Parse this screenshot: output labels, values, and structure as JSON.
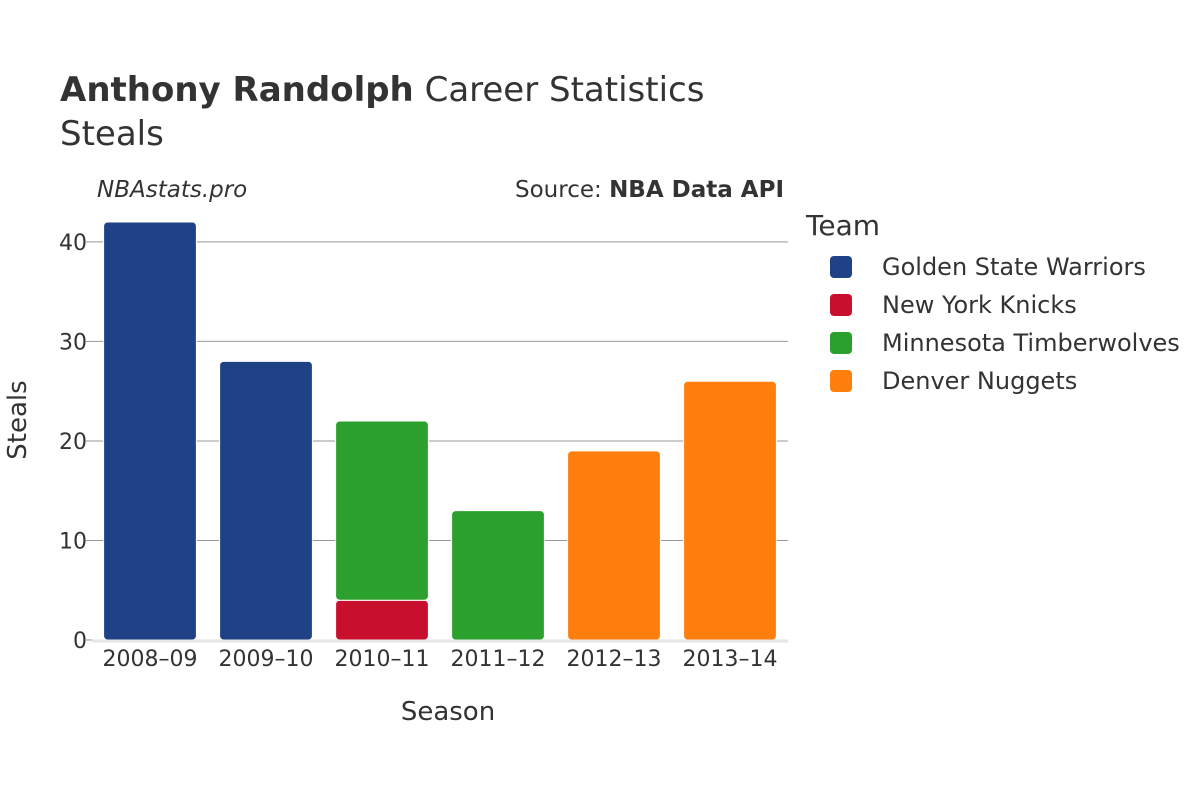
{
  "header": {
    "title_bold": "Anthony Randolph",
    "title_rest": " Career Statistics",
    "subtitle": "Steals",
    "watermark": "NBAstats.pro",
    "source_prefix": "Source: ",
    "source_name": "NBA Data API"
  },
  "legend": {
    "title": "Team",
    "items": [
      {
        "label": "Golden State Warriors",
        "color": "#1f4287"
      },
      {
        "label": "New York Knicks",
        "color": "#c8102e"
      },
      {
        "label": "Minnesota Timberwolves",
        "color": "#2ca02c"
      },
      {
        "label": "Denver Nuggets",
        "color": "#ff7f0e"
      }
    ]
  },
  "chart_data": {
    "type": "bar",
    "stacked": true,
    "title": "Anthony Randolph Career Statistics",
    "subtitle": "Steals",
    "xlabel": "Season",
    "ylabel": "Steals",
    "ylim": [
      0,
      42
    ],
    "yticks": [
      0,
      10,
      20,
      30,
      40
    ],
    "categories": [
      "2008–09",
      "2009–10",
      "2010–11",
      "2011–12",
      "2012–13",
      "2013–14"
    ],
    "series": [
      {
        "name": "Golden State Warriors",
        "color": "#1f4287",
        "values": [
          42,
          28,
          0,
          0,
          0,
          0
        ]
      },
      {
        "name": "New York Knicks",
        "color": "#c8102e",
        "values": [
          0,
          0,
          4,
          0,
          0,
          0
        ]
      },
      {
        "name": "Minnesota Timberwolves",
        "color": "#2ca02c",
        "values": [
          0,
          0,
          18,
          13,
          0,
          0
        ]
      },
      {
        "name": "Denver Nuggets",
        "color": "#ff7f0e",
        "values": [
          0,
          0,
          0,
          0,
          19,
          26
        ]
      }
    ],
    "grid": true,
    "legend_position": "right"
  }
}
